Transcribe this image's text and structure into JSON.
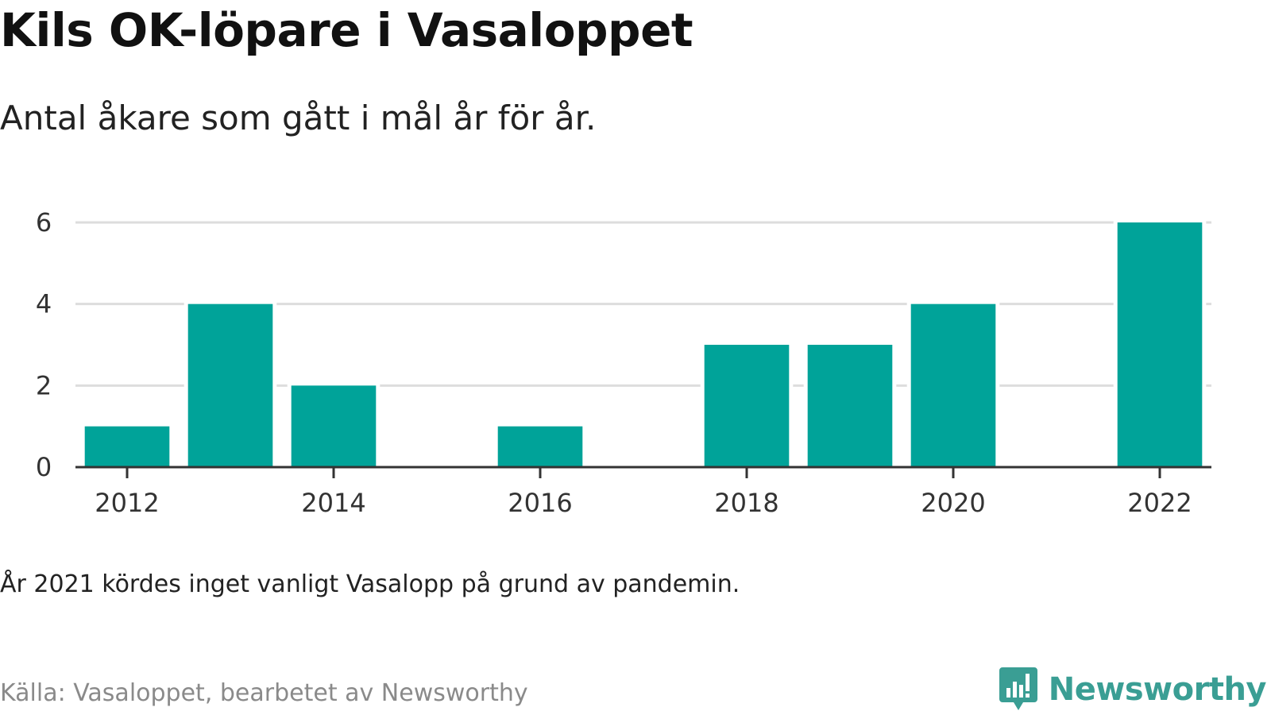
{
  "header": {
    "title": "Kils OK-löpare i Vasaloppet",
    "subtitle": "Antal åkare som gått i mål år för år."
  },
  "footer": {
    "note": "År 2021 kördes inget vanligt Vasalopp på grund av pandemin.",
    "source": "Källa: Vasaloppet, bearbetet av Newsworthy",
    "brand": "Newsworthy",
    "brand_icon": "bar-chart-speech-bubble-icon"
  },
  "colors": {
    "bar": "#00a399",
    "grid": "#dddddd",
    "axis": "#333333",
    "brand": "#3a9e94"
  },
  "chart_data": {
    "type": "bar",
    "title": "Kils OK-löpare i Vasaloppet",
    "subtitle": "Antal åkare som gått i mål år för år.",
    "xlabel": "",
    "ylabel": "",
    "categories": [
      2012,
      2013,
      2014,
      2015,
      2016,
      2017,
      2018,
      2019,
      2020,
      2021,
      2022
    ],
    "values": [
      1,
      4,
      2,
      0,
      1,
      0,
      3,
      3,
      4,
      null,
      6
    ],
    "xticks": [
      2012,
      2014,
      2016,
      2018,
      2020,
      2022
    ],
    "yticks": [
      0,
      2,
      4,
      6
    ],
    "ylim": [
      0,
      6
    ],
    "grid": true,
    "legend": "none"
  }
}
